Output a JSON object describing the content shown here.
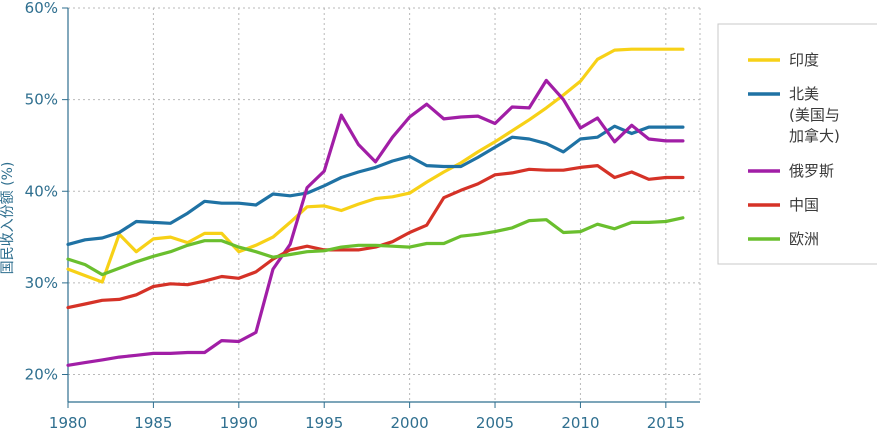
{
  "chart_data": {
    "type": "line",
    "title": "",
    "xlabel": "",
    "ylabel": "国民收入份额 (%)",
    "xlim": [
      1980,
      2017
    ],
    "ylim": [
      17,
      60
    ],
    "x_ticks": [
      1980,
      1985,
      1990,
      1995,
      2000,
      2005,
      2010,
      2015
    ],
    "x_tick_labels": [
      "1980",
      "1985",
      "1990",
      "1995",
      "2000",
      "2005",
      "2010",
      "2015"
    ],
    "y_ticks": [
      20,
      30,
      40,
      50,
      60
    ],
    "y_tick_labels": [
      "20%",
      "30%",
      "40%",
      "50%",
      "60%"
    ],
    "grid": true,
    "legend_position": "right",
    "x": [
      1980,
      1981,
      1982,
      1983,
      1984,
      1985,
      1986,
      1987,
      1988,
      1989,
      1990,
      1991,
      1992,
      1993,
      1994,
      1995,
      1996,
      1997,
      1998,
      1999,
      2000,
      2001,
      2002,
      2003,
      2004,
      2005,
      2006,
      2007,
      2008,
      2009,
      2010,
      2011,
      2012,
      2013,
      2014,
      2015,
      2016
    ],
    "series": [
      {
        "name": "印度",
        "color": "#f7d117",
        "values": [
          31.5,
          30.8,
          30.1,
          35.3,
          33.4,
          34.8,
          35.0,
          34.4,
          35.4,
          35.4,
          33.4,
          34.1,
          35.0,
          36.6,
          38.3,
          38.4,
          37.9,
          38.6,
          39.2,
          39.4,
          39.8,
          41.0,
          42.1,
          43.1,
          44.3,
          45.4,
          46.6,
          47.8,
          49.1,
          50.5,
          52.0,
          54.4,
          55.4,
          55.5,
          55.5,
          55.5,
          55.5
        ]
      },
      {
        "name": "北美",
        "name_lines": [
          "北美",
          "(美国与",
          "加拿大)"
        ],
        "color": "#1f72a4",
        "values": [
          34.2,
          34.7,
          34.9,
          35.5,
          36.7,
          36.6,
          36.5,
          37.6,
          38.9,
          38.7,
          38.7,
          38.5,
          39.7,
          39.5,
          39.8,
          40.6,
          41.5,
          42.1,
          42.6,
          43.3,
          43.8,
          42.8,
          42.7,
          42.7,
          43.7,
          44.8,
          45.9,
          45.7,
          45.2,
          44.3,
          45.7,
          45.9,
          47.1,
          46.3,
          47.0,
          47.0,
          47.0
        ]
      },
      {
        "name": "俄罗斯",
        "color": "#a11ea6",
        "values": [
          21.0,
          21.3,
          21.6,
          21.9,
          22.1,
          22.3,
          22.3,
          22.4,
          22.4,
          23.7,
          23.6,
          24.6,
          31.5,
          34.2,
          40.4,
          42.2,
          48.3,
          45.1,
          43.2,
          45.9,
          48.1,
          49.5,
          47.9,
          48.1,
          48.2,
          47.4,
          49.2,
          49.1,
          52.1,
          50.0,
          46.9,
          48.0,
          45.4,
          47.2,
          45.7,
          45.5,
          45.5
        ]
      },
      {
        "name": "中国",
        "color": "#d53227",
        "values": [
          27.3,
          27.7,
          28.1,
          28.2,
          28.7,
          29.6,
          29.9,
          29.8,
          30.2,
          30.7,
          30.5,
          31.2,
          32.6,
          33.6,
          34.0,
          33.6,
          33.6,
          33.6,
          33.9,
          34.5,
          35.5,
          36.3,
          39.3,
          40.1,
          40.8,
          41.8,
          42.0,
          42.4,
          42.3,
          42.3,
          42.6,
          42.8,
          41.5,
          42.1,
          41.3,
          41.5,
          41.5
        ]
      },
      {
        "name": "欧洲",
        "color": "#6abf2e",
        "values": [
          32.6,
          32.0,
          30.9,
          31.6,
          32.3,
          32.9,
          33.4,
          34.1,
          34.6,
          34.6,
          33.9,
          33.4,
          32.8,
          33.1,
          33.4,
          33.5,
          33.9,
          34.1,
          34.1,
          34.0,
          33.9,
          34.3,
          34.3,
          35.1,
          35.3,
          35.6,
          36.0,
          36.8,
          36.9,
          35.5,
          35.6,
          36.4,
          35.9,
          36.6,
          36.6,
          36.7,
          37.1
        ]
      }
    ]
  }
}
